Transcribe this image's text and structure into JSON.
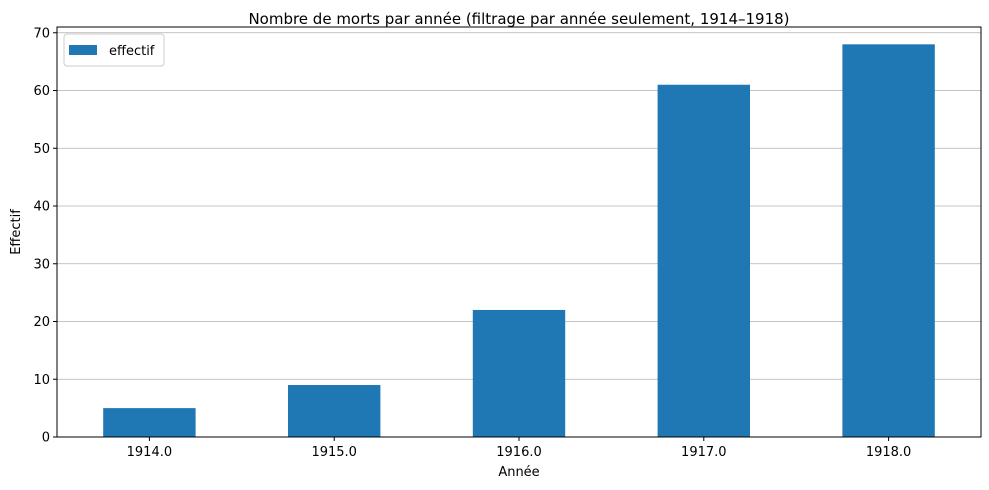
{
  "chart_data": {
    "type": "bar",
    "title": "Nombre de morts par année (filtrage par année seulement, 1914–1918)",
    "xlabel": "Année",
    "ylabel": "Effectif",
    "categories": [
      "1914.0",
      "1915.0",
      "1916.0",
      "1917.0",
      "1918.0"
    ],
    "series": [
      {
        "name": "effectif",
        "values": [
          5,
          9,
          22,
          61,
          68
        ],
        "color": "#1f77b4"
      }
    ],
    "ylim": [
      0,
      71
    ],
    "yticks": [
      0,
      10,
      20,
      30,
      40,
      50,
      60,
      70
    ],
    "grid": {
      "y": true,
      "x": false
    },
    "legend_position": "upper-left"
  }
}
